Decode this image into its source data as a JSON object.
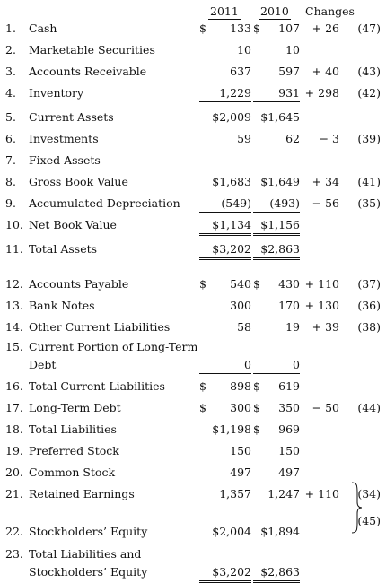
{
  "header": {
    "col_2011": "2011",
    "col_2010": "2010",
    "col_changes": "Changes"
  },
  "rows": [
    {
      "n": "1.",
      "label": "Cash",
      "v2011": "133",
      "v2010": "107",
      "pre": "$",
      "sign": "+",
      "chg": "26",
      "ref": "(47)"
    },
    {
      "n": "2.",
      "label": "Marketable Securities",
      "v2011": "10",
      "v2010": "10"
    },
    {
      "n": "3.",
      "label": "Accounts Receivable",
      "v2011": "637",
      "v2010": "597",
      "sign": "+",
      "chg": "40",
      "ref": "(43)"
    },
    {
      "n": "4.",
      "label": "Inventory",
      "v2011": "1,229",
      "v2010": "931",
      "sign": "+",
      "chg": "298",
      "ref": "(42)"
    },
    {
      "n": "5.",
      "label": "Current Assets",
      "v2011": "$2,009",
      "v2010": "$1,645"
    },
    {
      "n": "6.",
      "label": "Investments",
      "v2011": "59",
      "v2010": "62",
      "sign": "−",
      "chg": "3",
      "ref": "(39)"
    },
    {
      "n": "7.",
      "label": "Fixed Assets"
    },
    {
      "n": "8.",
      "label": "Gross Book Value",
      "v2011": "$1,683",
      "v2010": "$1,649",
      "sign": "+",
      "chg": "34",
      "ref": "(41)"
    },
    {
      "n": "9.",
      "label": "Accumulated Depreciation",
      "v2011": "(549)",
      "v2010": "(493)",
      "sign": "−",
      "chg": "56",
      "ref": "(35)"
    },
    {
      "n": "10.",
      "label": "Net Book Value",
      "v2011": "$1,134",
      "v2010": "$1,156"
    },
    {
      "n": "11.",
      "label": "Total Assets",
      "v2011": "$3,202",
      "v2010": "$2,863"
    },
    {
      "n": "12.",
      "label": "Accounts Payable",
      "v2011": "540",
      "v2010": "430",
      "pre": "$",
      "sign": "+",
      "chg": "110",
      "ref": "(37)"
    },
    {
      "n": "13.",
      "label": "Bank Notes",
      "v2011": "300",
      "v2010": "170",
      "sign": "+",
      "chg": "130",
      "ref": "(36)"
    },
    {
      "n": "14.",
      "label": "Other Current Liabilities",
      "v2011": "58",
      "v2010": "19",
      "sign": "+",
      "chg": "39",
      "ref": "(38)"
    },
    {
      "n": "15.",
      "label": "Current Portion of Long-Term",
      "label2": "Debt",
      "v2011": "0",
      "v2010": "0"
    },
    {
      "n": "16.",
      "label": "Total Current Liabilities",
      "v2011": "898",
      "v2010": "619",
      "pre": "$"
    },
    {
      "n": "17.",
      "label": "Long-Term Debt",
      "v2011": "300",
      "v2010": "350",
      "pre": "$",
      "sign": "−",
      "chg": "50",
      "ref": "(44)"
    },
    {
      "n": "18.",
      "label": "Total Liabilities",
      "v2011": "$1,198",
      "v2010": "969",
      "pre2": "$"
    },
    {
      "n": "19.",
      "label": "Preferred Stock",
      "v2011": "150",
      "v2010": "150"
    },
    {
      "n": "20.",
      "label": "Common Stock",
      "v2011": "497",
      "v2010": "497"
    },
    {
      "n": "21.",
      "label": "Retained Earnings",
      "v2011": "1,357",
      "v2010": "1,247",
      "sign": "+",
      "chg": "110",
      "ref": "(34)",
      "ref2": "(45)"
    },
    {
      "n": "22.",
      "label": "Stockholders’ Equity",
      "v2011": "$2,004",
      "v2010": "$1,894"
    },
    {
      "n": "23.",
      "label": "Total Liabilities and",
      "label2": "Stockholders’ Equity",
      "v2011": "$3,202",
      "v2010": "$2,863"
    }
  ]
}
